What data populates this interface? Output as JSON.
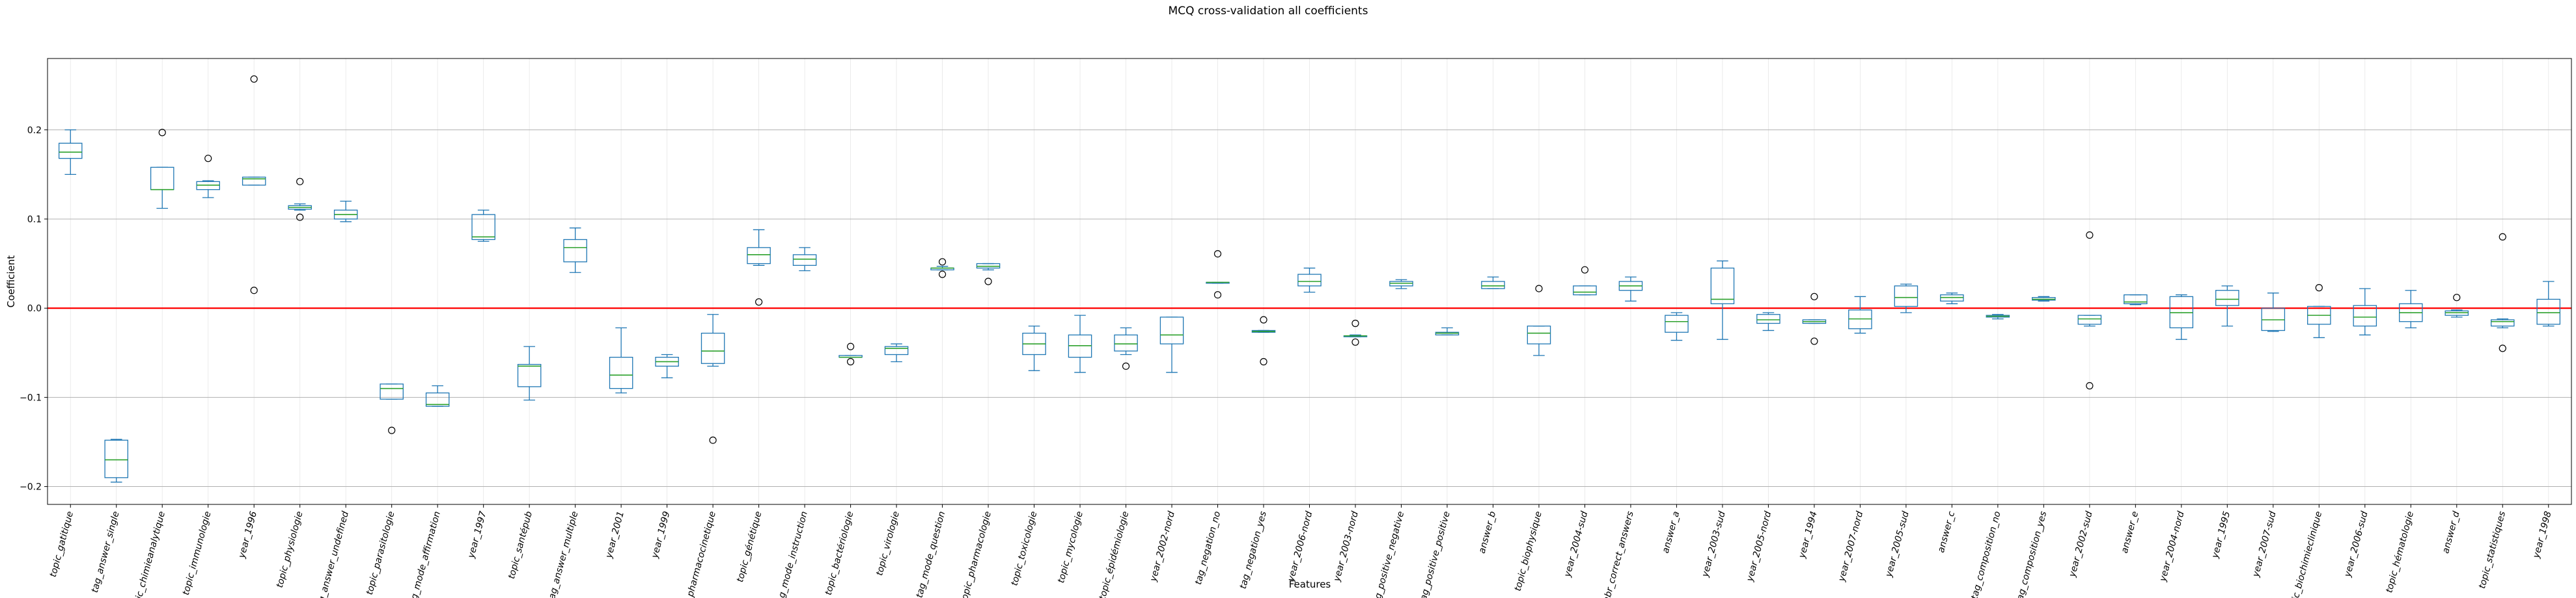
{
  "chart_data": {
    "type": "boxplot",
    "title": "MCQ cross-validation all coefficients",
    "xlabel": "Features",
    "ylabel": "Coefficient",
    "ylim": [
      -0.22,
      0.28
    ],
    "yticks": [
      -0.2,
      -0.1,
      0.0,
      0.1,
      0.2
    ],
    "ytick_labels": [
      "−0.2",
      "−0.1",
      "0.0",
      "0.1",
      "0.2"
    ],
    "grid": "horizontal major, light vertical",
    "reference_line": {
      "y": 0.0,
      "color": "#ff0000"
    },
    "colors": {
      "box": "#1f77b4",
      "median": "#2ca02c",
      "whisker": "#1f77b4",
      "grid": "#b0b0b0",
      "zero_line": "#ff0000"
    },
    "categories": [
      "topic_gatitique",
      "tag_answer_single",
      "topic_chimieanalytique",
      "topic_immunologie",
      "year_1996",
      "topic_physiologie",
      "tag_answer_undefined",
      "topic_parasitologie",
      "tag_mode_affirmation",
      "year_1997",
      "topic_santépub",
      "tag_answer_multiple",
      "year_2001",
      "year_1999",
      "topic_pharmacocinetique",
      "topic_génétique",
      "tag_mode_instruction",
      "topic_bactériologie",
      "topic_virologie",
      "tag_mode_question",
      "topic_pharmacologie",
      "topic_toxicologie",
      "topic_mycologie",
      "topic_épidémiologie",
      "year_2002-nord",
      "tag_negation_no",
      "tag_negation_yes",
      "year_2006-nord",
      "year_2003-nord",
      "tag_positive_negative",
      "tag_positive_positive",
      "answer_b",
      "topic_biophysique",
      "year_2004-sud",
      "nbr_correct_answers",
      "answer_a",
      "year_2003-sud",
      "year_2005-nord",
      "year_1994",
      "year_2007-nord",
      "year_2005-sud",
      "answer_c",
      "tag_composition_no",
      "tag_composition_yes",
      "year_2002-sud",
      "answer_e",
      "year_2004-nord",
      "year_1995",
      "year_2007-sud",
      "topic_biochimieclinique",
      "year_2006-sud",
      "topic_hématologie",
      "answer_d",
      "topic_statistiques",
      "year_1998"
    ],
    "boxes": [
      [
        0.15,
        0.168,
        0.175,
        0.185,
        0.2,
        []
      ],
      [
        -0.195,
        -0.19,
        -0.17,
        -0.148,
        -0.147,
        []
      ],
      [
        0.112,
        0.133,
        0.133,
        0.158,
        0.158,
        [
          0.197
        ]
      ],
      [
        0.124,
        0.133,
        0.138,
        0.142,
        0.143,
        [
          0.168
        ]
      ],
      [
        0.138,
        0.138,
        0.145,
        0.147,
        0.147,
        [
          0.257,
          0.02
        ]
      ],
      [
        0.11,
        0.111,
        0.113,
        0.115,
        0.117,
        [
          0.142,
          0.102
        ]
      ],
      [
        0.097,
        0.1,
        0.105,
        0.11,
        0.12,
        []
      ],
      [
        -0.102,
        -0.102,
        -0.09,
        -0.085,
        -0.085,
        [
          -0.137
        ]
      ],
      [
        -0.11,
        -0.11,
        -0.108,
        -0.095,
        -0.087,
        []
      ],
      [
        0.075,
        0.077,
        0.08,
        0.105,
        0.11,
        []
      ],
      [
        -0.103,
        -0.088,
        -0.065,
        -0.063,
        -0.043,
        []
      ],
      [
        0.04,
        0.052,
        0.068,
        0.077,
        0.09,
        []
      ],
      [
        -0.095,
        -0.09,
        -0.075,
        -0.055,
        -0.022,
        []
      ],
      [
        -0.078,
        -0.065,
        -0.06,
        -0.055,
        -0.052,
        []
      ],
      [
        -0.065,
        -0.062,
        -0.048,
        -0.028,
        -0.007,
        [
          -0.148
        ]
      ],
      [
        0.048,
        0.05,
        0.06,
        0.068,
        0.088,
        [
          0.007
        ]
      ],
      [
        0.042,
        0.048,
        0.055,
        0.06,
        0.068,
        []
      ],
      [
        -0.055,
        -0.055,
        -0.055,
        -0.053,
        -0.053,
        [
          -0.06,
          -0.043
        ]
      ],
      [
        -0.06,
        -0.052,
        -0.045,
        -0.043,
        -0.04,
        []
      ],
      [
        0.043,
        0.043,
        0.045,
        0.045,
        0.047,
        [
          0.052,
          0.038
        ]
      ],
      [
        0.043,
        0.045,
        0.047,
        0.05,
        0.05,
        [
          0.03
        ]
      ],
      [
        -0.07,
        -0.052,
        -0.04,
        -0.028,
        -0.02,
        []
      ],
      [
        -0.072,
        -0.055,
        -0.042,
        -0.03,
        -0.008,
        []
      ],
      [
        -0.052,
        -0.048,
        -0.04,
        -0.03,
        -0.022,
        [
          -0.065
        ]
      ],
      [
        -0.072,
        -0.04,
        -0.03,
        -0.01,
        -0.01,
        []
      ],
      [
        0.028,
        0.028,
        0.029,
        0.029,
        0.029,
        [
          0.061,
          0.015
        ]
      ],
      [
        -0.027,
        -0.027,
        -0.026,
        -0.025,
        -0.025,
        [
          -0.013,
          -0.06
        ]
      ],
      [
        0.018,
        0.025,
        0.03,
        0.038,
        0.045,
        []
      ],
      [
        -0.032,
        -0.032,
        -0.031,
        -0.031,
        -0.03,
        [
          -0.017,
          -0.038
        ]
      ],
      [
        0.022,
        0.025,
        0.028,
        0.03,
        0.032,
        []
      ],
      [
        -0.03,
        -0.03,
        -0.028,
        -0.027,
        -0.022,
        []
      ],
      [
        0.022,
        0.022,
        0.025,
        0.03,
        0.035,
        []
      ],
      [
        -0.053,
        -0.04,
        -0.028,
        -0.02,
        -0.02,
        [
          0.022
        ]
      ],
      [
        0.015,
        0.015,
        0.018,
        0.025,
        0.025,
        [
          0.043
        ]
      ],
      [
        0.008,
        0.02,
        0.025,
        0.03,
        0.035,
        []
      ],
      [
        -0.036,
        -0.027,
        -0.015,
        -0.008,
        -0.005,
        []
      ],
      [
        -0.035,
        0.005,
        0.01,
        0.045,
        0.053,
        []
      ],
      [
        -0.025,
        -0.017,
        -0.013,
        -0.007,
        -0.005,
        []
      ],
      [
        -0.017,
        -0.017,
        -0.015,
        -0.013,
        -0.013,
        [
          0.013,
          -0.037
        ]
      ],
      [
        -0.028,
        -0.023,
        -0.012,
        -0.002,
        0.013,
        []
      ],
      [
        -0.005,
        0.002,
        0.012,
        0.025,
        0.027,
        []
      ],
      [
        0.005,
        0.008,
        0.012,
        0.015,
        0.017,
        []
      ],
      [
        -0.012,
        -0.01,
        -0.009,
        -0.008,
        -0.007,
        []
      ],
      [
        0.008,
        0.009,
        0.01,
        0.012,
        0.013,
        []
      ],
      [
        -0.02,
        -0.018,
        -0.012,
        -0.008,
        -0.008,
        [
          0.082,
          -0.087
        ]
      ],
      [
        0.004,
        0.005,
        0.007,
        0.015,
        0.015,
        []
      ],
      [
        -0.035,
        -0.022,
        -0.005,
        0.013,
        0.015,
        []
      ],
      [
        -0.02,
        0.003,
        0.01,
        0.02,
        0.025,
        []
      ],
      [
        -0.026,
        -0.025,
        -0.013,
        0.0,
        0.017,
        []
      ],
      [
        -0.033,
        -0.018,
        -0.008,
        0.002,
        0.002,
        [
          0.023
        ]
      ],
      [
        -0.03,
        -0.02,
        -0.01,
        0.003,
        0.022,
        []
      ],
      [
        -0.022,
        -0.015,
        -0.005,
        0.005,
        0.02,
        []
      ],
      [
        -0.01,
        -0.008,
        -0.005,
        -0.003,
        -0.002,
        [
          0.012
        ]
      ],
      [
        -0.022,
        -0.02,
        -0.015,
        -0.013,
        -0.012,
        [
          0.08,
          -0.045
        ]
      ],
      [
        -0.02,
        -0.018,
        -0.005,
        0.01,
        0.03,
        []
      ]
    ]
  }
}
